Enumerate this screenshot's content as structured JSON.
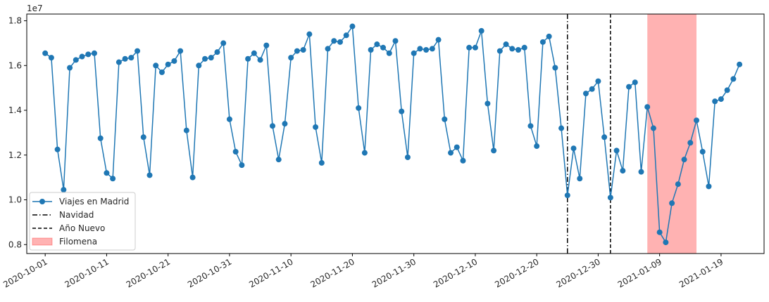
{
  "chart_data": {
    "type": "line",
    "title": "",
    "xlabel": "",
    "ylabel": "",
    "y_offset_label": "1e7",
    "xlim": [
      "2020-09-28",
      "2021-01-26"
    ],
    "ylim": [
      7.6,
      18.3
    ],
    "grid": false,
    "legend_position": "lower-left",
    "xticks": [
      "2020-10-01",
      "2020-10-11",
      "2020-10-21",
      "2020-10-31",
      "2020-11-10",
      "2020-11-20",
      "2020-11-30",
      "2020-12-10",
      "2020-12-20",
      "2020-12-30",
      "2021-01-09",
      "2021-01-19"
    ],
    "yticks": [
      "0.8",
      "1.0",
      "1.2",
      "1.4",
      "1.6",
      "1.8"
    ],
    "ytick_values": [
      8,
      10,
      12,
      14,
      16,
      18
    ],
    "series": [
      {
        "name": "Viajes en Madrid",
        "color": "#1f77b4",
        "marker": "circle",
        "start_date": "2020-10-01",
        "values": [
          16.55,
          16.35,
          12.25,
          10.45,
          15.9,
          16.25,
          16.4,
          16.5,
          16.55,
          12.75,
          11.2,
          10.95,
          16.15,
          16.3,
          16.35,
          16.65,
          12.8,
          11.1,
          16.0,
          15.7,
          16.05,
          16.2,
          16.65,
          13.1,
          11.0,
          16.0,
          16.3,
          16.35,
          16.6,
          17.0,
          13.6,
          12.15,
          11.55,
          16.3,
          16.55,
          16.25,
          16.9,
          13.3,
          11.8,
          13.4,
          16.35,
          16.65,
          16.7,
          17.4,
          13.25,
          11.65,
          16.75,
          17.1,
          17.05,
          17.35,
          17.75,
          14.1,
          12.1,
          16.7,
          16.95,
          16.8,
          16.55,
          17.1,
          13.95,
          11.9,
          16.55,
          16.75,
          16.7,
          16.75,
          17.15,
          13.6,
          12.1,
          12.35,
          11.75,
          16.8,
          16.8,
          17.55,
          14.3,
          12.2,
          16.65,
          16.95,
          16.75,
          16.7,
          16.8,
          13.3,
          12.4,
          17.05,
          17.3,
          15.9,
          13.2,
          10.2,
          12.3,
          10.95,
          14.75,
          14.95,
          15.3,
          12.8,
          10.1,
          12.2,
          11.3,
          15.05,
          15.25,
          11.25,
          14.15,
          13.2,
          8.55,
          8.1,
          9.85,
          10.7,
          11.8,
          12.55,
          13.55,
          12.15,
          10.6,
          14.4,
          14.5,
          14.9,
          15.4,
          16.05
        ]
      }
    ],
    "vlines": [
      {
        "name": "Navidad",
        "date": "2020-12-25",
        "style": "dashdot",
        "color": "#000000"
      },
      {
        "name": "Año Nuevo",
        "date": "2021-01-01",
        "style": "dashed",
        "color": "#000000"
      }
    ],
    "spans": [
      {
        "name": "Filomena",
        "start": "2021-01-07",
        "end": "2021-01-15",
        "color": "#ff0000",
        "alpha": 0.3
      }
    ]
  }
}
